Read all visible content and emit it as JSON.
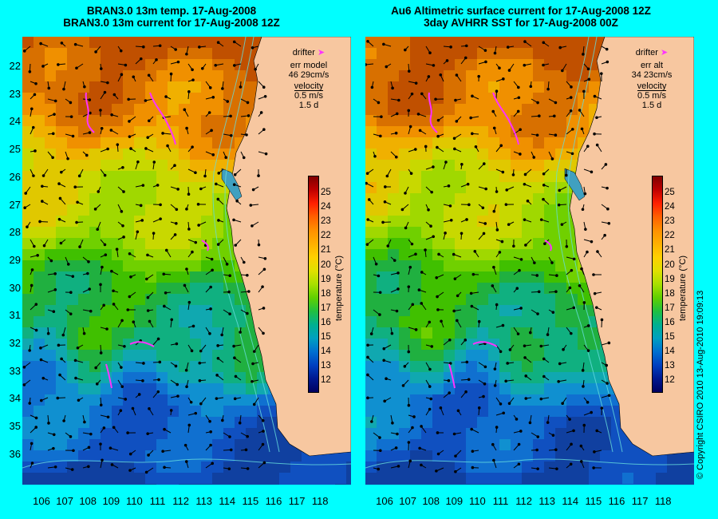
{
  "left_panel": {
    "title_line1": "BRAN3.0 13m temp. 17-Aug-2008",
    "title_line2": "BRAN3.0 13m current for 17-Aug-2008 12Z",
    "legend": {
      "drifter": "drifter",
      "err_label": "err model",
      "err_value": "46 29cm/s",
      "velocity": "velocity",
      "speed": "0.5 m/s",
      "days": "1.5 d"
    }
  },
  "right_panel": {
    "title_line1": "Au6 Altimetric surface current for 17-Aug-2008 12Z",
    "title_line2": "3day AVHRR SST for 17-Aug-2008 00Z",
    "legend": {
      "drifter": "drifter",
      "err_label": "err alt",
      "err_value": "34 23cm/s",
      "velocity": "velocity",
      "speed": "0.5 m/s",
      "days": "1.5 d"
    }
  },
  "latitude_labels": [
    "22",
    "23",
    "24",
    "25",
    "26",
    "27",
    "28",
    "29",
    "30",
    "31",
    "32",
    "33",
    "34",
    "35",
    "36"
  ],
  "longitude_labels": [
    "106",
    "107",
    "108",
    "109",
    "110",
    "111",
    "112",
    "113",
    "114",
    "115",
    "116",
    "117",
    "118"
  ],
  "colorbar": {
    "title": "temperature (°C)",
    "labels": [
      "25",
      "24",
      "23",
      "22",
      "21",
      "20",
      "19",
      "18",
      "17",
      "16",
      "15",
      "14",
      "13",
      "12"
    ]
  },
  "colors": {
    "background": "#00ffff",
    "land": "#f7c7a0",
    "drifter": "#ff33ff",
    "contour": "#66dddd"
  },
  "copyright": "© Copyright CSIRO 2010   13-Aug-2010 19:09:13"
}
